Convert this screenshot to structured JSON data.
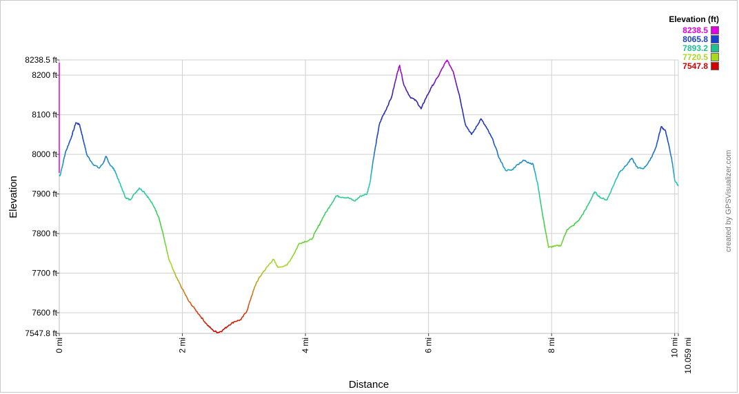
{
  "chart_data": {
    "type": "line",
    "title": "",
    "xlabel": "Distance",
    "ylabel": "Elevation",
    "xlim": [
      0,
      10.059
    ],
    "ylim": [
      7547.8,
      8238.5
    ],
    "x_ticks": [
      {
        "value": 0,
        "label": "0 mi"
      },
      {
        "value": 2,
        "label": "2 mi"
      },
      {
        "value": 4,
        "label": "4 mi"
      },
      {
        "value": 6,
        "label": "6 mi"
      },
      {
        "value": 8,
        "label": "8 mi"
      },
      {
        "value": 10,
        "label": "10 mi"
      },
      {
        "value": 10.059,
        "label": "10.059 mi"
      }
    ],
    "y_ticks": [
      {
        "value": 7547.8,
        "label": "7547.8 ft"
      },
      {
        "value": 7600,
        "label": "7600 ft"
      },
      {
        "value": 7700,
        "label": "7700 ft"
      },
      {
        "value": 7800,
        "label": "7800 ft"
      },
      {
        "value": 7900,
        "label": "7900 ft"
      },
      {
        "value": 8000,
        "label": "8000 ft"
      },
      {
        "value": 8100,
        "label": "8100 ft"
      },
      {
        "value": 8200,
        "label": "8200 ft"
      },
      {
        "value": 8238.5,
        "label": "8238.5 ft"
      }
    ],
    "grid": true,
    "legend": {
      "title": "Elevation (ft)",
      "placement": "top-right",
      "entries": [
        {
          "label": "8238.5",
          "color": "#e000e0"
        },
        {
          "label": "8065.8",
          "color": "#1a40d0"
        },
        {
          "label": "7893.2",
          "color": "#20c090"
        },
        {
          "label": "7720.5",
          "color": "#a8d820"
        },
        {
          "label": "7547.8",
          "color": "#d00000"
        }
      ]
    },
    "series": [
      {
        "x": [
          0,
          0.02,
          0.1,
          0.2,
          0.27,
          0.33,
          0.4,
          0.45,
          0.55,
          0.65,
          0.72,
          0.76,
          0.82,
          0.9,
          1.0,
          1.08,
          1.15,
          1.22,
          1.3,
          1.38,
          1.45,
          1.55,
          1.62,
          1.7,
          1.78,
          1.9,
          2.0,
          2.1,
          2.2,
          2.3,
          2.4,
          2.5,
          2.58,
          2.65,
          2.75,
          2.85,
          2.95,
          3.05,
          3.12,
          3.2,
          3.3,
          3.4,
          3.48,
          3.55,
          3.7,
          3.8,
          3.9,
          4.0,
          4.1,
          4.2,
          4.3,
          4.4,
          4.5,
          4.6,
          4.7,
          4.8,
          4.9,
          5.0,
          5.05,
          5.1,
          5.15,
          5.2,
          5.25,
          5.3,
          5.4,
          5.5,
          5.53,
          5.6,
          5.7,
          5.8,
          5.88,
          5.95,
          6.05,
          6.15,
          6.25,
          6.3,
          6.4,
          6.5,
          6.6,
          6.7,
          6.8,
          6.85,
          6.95,
          7.05,
          7.15,
          7.25,
          7.35,
          7.45,
          7.55,
          7.62,
          7.7,
          7.78,
          7.85,
          7.95,
          8.05,
          8.15,
          8.25,
          8.35,
          8.45,
          8.55,
          8.65,
          8.7,
          8.8,
          8.9,
          9.0,
          9.1,
          9.2,
          9.3,
          9.4,
          9.5,
          9.6,
          9.7,
          9.78,
          9.85,
          9.95,
          10.0,
          10.059
        ],
        "y": [
          7945,
          7950,
          8005,
          8045,
          8080,
          8075,
          8030,
          7998,
          7975,
          7965,
          7980,
          7995,
          7975,
          7960,
          7920,
          7890,
          7885,
          7900,
          7915,
          7905,
          7890,
          7865,
          7840,
          7790,
          7735,
          7690,
          7660,
          7630,
          7610,
          7590,
          7570,
          7555,
          7550,
          7555,
          7568,
          7578,
          7582,
          7605,
          7640,
          7675,
          7700,
          7720,
          7735,
          7715,
          7720,
          7745,
          7775,
          7780,
          7785,
          7815,
          7845,
          7870,
          7895,
          7892,
          7890,
          7882,
          7895,
          7900,
          7930,
          7985,
          8030,
          8075,
          8095,
          8110,
          8145,
          8210,
          8225,
          8175,
          8145,
          8135,
          8115,
          8140,
          8170,
          8195,
          8225,
          8238,
          8210,
          8150,
          8075,
          8050,
          8075,
          8090,
          8065,
          8035,
          7990,
          7960,
          7960,
          7975,
          7985,
          7980,
          7975,
          7920,
          7850,
          7765,
          7768,
          7770,
          7810,
          7820,
          7835,
          7860,
          7890,
          7905,
          7890,
          7885,
          7920,
          7955,
          7970,
          7990,
          7965,
          7965,
          7985,
          8020,
          8070,
          8060,
          7990,
          7935,
          7920
        ]
      }
    ]
  },
  "credit": "created by GPSVisualizer.com"
}
